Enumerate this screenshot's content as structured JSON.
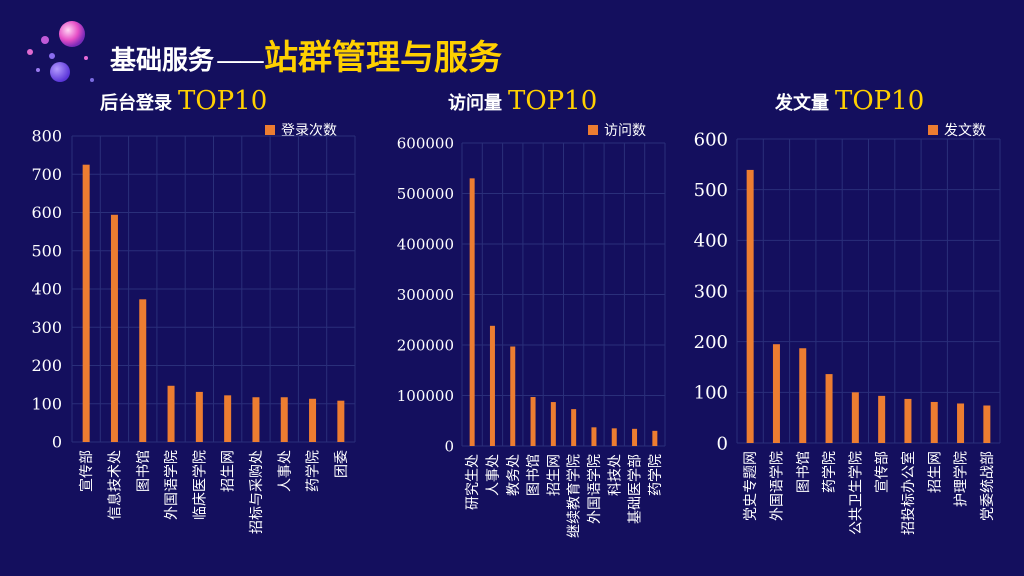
{
  "header": {
    "title_main": "基础服务",
    "title_dash": "——",
    "title_sub": "站群管理与服务"
  },
  "colors": {
    "background": "#140f5e",
    "bar": "#ed7d31",
    "accent": "#ffd000",
    "grid": "#2a2f7a"
  },
  "chart_data": [
    {
      "type": "bar",
      "title_cn": "后台登录",
      "title_en": "TOP10",
      "legend": "登录次数",
      "ylim": [
        0,
        800
      ],
      "ytick_step": 100,
      "categories": [
        "宣传部",
        "信息技术处",
        "图书馆",
        "外国语学院",
        "临床医学院",
        "招生网",
        "招标与采购处",
        "人事处",
        "药学院",
        "团委"
      ],
      "values": [
        725,
        594,
        373,
        147,
        131,
        122,
        117,
        117,
        113,
        108
      ]
    },
    {
      "type": "bar",
      "title_cn": "访问量",
      "title_en": "TOP10",
      "legend": "访问数",
      "ylim": [
        0,
        600000
      ],
      "ytick_step": 100000,
      "categories": [
        "研究生处",
        "人事处",
        "教务处",
        "图书馆",
        "招生网",
        "继续教育学院",
        "外国语学院",
        "科技处",
        "基础医学部",
        "药学院"
      ],
      "values": [
        530000,
        238000,
        197000,
        97000,
        87000,
        73000,
        37000,
        35000,
        34000,
        30000
      ]
    },
    {
      "type": "bar",
      "title_cn": "发文量",
      "title_en": "TOP10",
      "legend": "发文数",
      "ylim": [
        0,
        600
      ],
      "ytick_step": 100,
      "categories": [
        "党史专题网",
        "外国语学院",
        "图书馆",
        "药学院",
        "公共卫生学院",
        "宣传部",
        "招投标办公室",
        "招生网",
        "护理学院",
        "党委统战部"
      ],
      "values": [
        539,
        195,
        187,
        136,
        100,
        93,
        87,
        81,
        78,
        74
      ]
    }
  ]
}
